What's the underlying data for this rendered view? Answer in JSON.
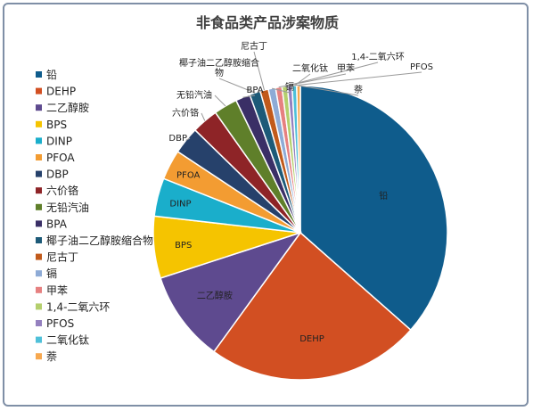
{
  "chart_data": {
    "type": "pie",
    "title": "非食品类产品涉案物质",
    "legend_position": "left",
    "series": [
      {
        "name": "铅",
        "value": 36.5,
        "color": "#0f5c8c"
      },
      {
        "name": "DEHP",
        "value": 23.5,
        "color": "#d24f22"
      },
      {
        "name": "二乙醇胺",
        "value": 10.0,
        "color": "#5e4a8f"
      },
      {
        "name": "BPS",
        "value": 6.8,
        "color": "#f5c400"
      },
      {
        "name": "DINP",
        "value": 4.2,
        "color": "#1aaecb"
      },
      {
        "name": "PFOA",
        "value": 3.3,
        "color": "#f39c32"
      },
      {
        "name": "DBP",
        "value": 3.0,
        "color": "#26416b"
      },
      {
        "name": "六价铬",
        "value": 2.9,
        "color": "#8e2427"
      },
      {
        "name": "无铅汽油",
        "value": 2.6,
        "color": "#5f7f2a"
      },
      {
        "name": "BPA",
        "value": 1.6,
        "color": "#3a2f66"
      },
      {
        "name": "椰子油二乙醇胺缩合物",
        "value": 1.2,
        "color": "#1d5a78"
      },
      {
        "name": "尼古丁",
        "value": 0.9,
        "color": "#c15a1b"
      },
      {
        "name": "镉",
        "value": 0.8,
        "color": "#8eabd6"
      },
      {
        "name": "甲苯",
        "value": 0.7,
        "color": "#e68080"
      },
      {
        "name": "1,4-二氧六环",
        "value": 0.6,
        "color": "#b4cf6d"
      },
      {
        "name": "PFOS",
        "value": 0.5,
        "color": "#9480bf"
      },
      {
        "name": "二氧化钛",
        "value": 0.5,
        "color": "#4fc0d9"
      },
      {
        "name": "萘",
        "value": 0.4,
        "color": "#f7a84f"
      }
    ],
    "inside_labels": [
      "铅",
      "DEHP",
      "二乙醇胺",
      "BPS",
      "DINP",
      "PFOA"
    ],
    "outside_labels": [
      {
        "text": "DBP"
      },
      {
        "text": "六价铬"
      },
      {
        "text": "无铅汽油"
      },
      {
        "text": "BPA"
      },
      {
        "text": "椰子油二乙醇胺缩合物",
        "lines": [
          "椰子油二乙醇胺缩合",
          "物"
        ]
      },
      {
        "text": "尼古丁"
      },
      {
        "text": "镉"
      },
      {
        "text": "二氧化钛"
      },
      {
        "text": "甲苯"
      },
      {
        "text": "1,4-二氧六环"
      },
      {
        "text": "PFOS"
      },
      {
        "text": "萘"
      }
    ]
  }
}
